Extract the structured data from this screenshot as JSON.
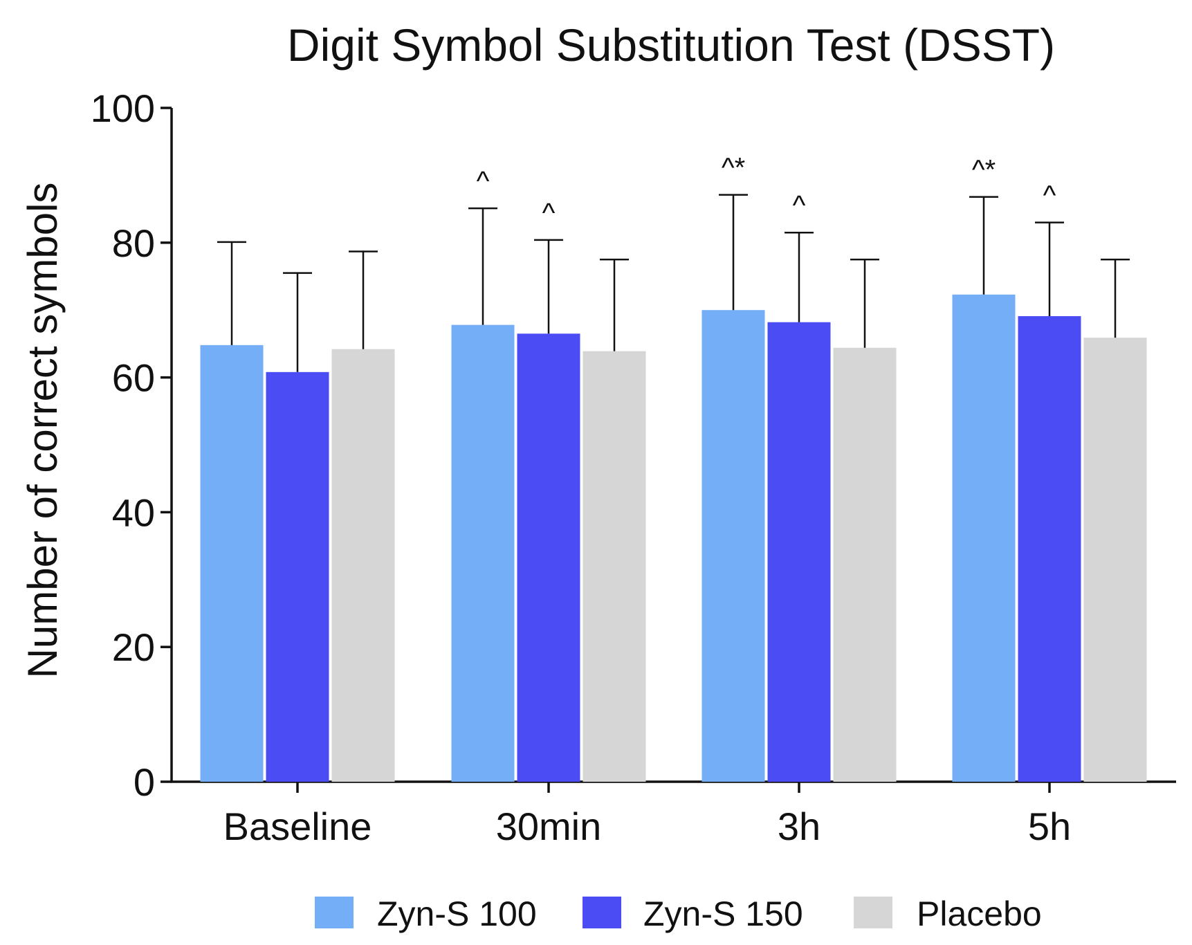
{
  "chart_data": {
    "type": "bar",
    "title": "Digit Symbol Substitution Test (DSST)",
    "xlabel": "",
    "ylabel": "Number of correct symbols",
    "ylim": [
      0,
      100
    ],
    "yticks": [
      0,
      20,
      40,
      60,
      80,
      100
    ],
    "categories": [
      "Baseline",
      "30min",
      "3h",
      "5h"
    ],
    "series": [
      {
        "name": "Zyn-S 100",
        "color": "#74aef7",
        "values": [
          64.8,
          67.8,
          70.0,
          72.3
        ],
        "error_upper": [
          80.1,
          85.1,
          87.1,
          86.8
        ],
        "annotations": [
          "",
          "^",
          "^*",
          "^*"
        ]
      },
      {
        "name": "Zyn-S 150",
        "color": "#4c4cf5",
        "values": [
          60.8,
          66.5,
          68.2,
          69.1
        ],
        "error_upper": [
          75.5,
          80.4,
          81.5,
          83.0
        ],
        "annotations": [
          "",
          "^",
          "^",
          "^"
        ]
      },
      {
        "name": "Placebo",
        "color": "#d6d6d6",
        "values": [
          64.2,
          63.9,
          64.4,
          65.9
        ],
        "error_upper": [
          78.7,
          77.5,
          77.5,
          77.5
        ],
        "annotations": [
          "",
          "",
          "",
          ""
        ]
      }
    ],
    "legend_position": "bottom-center",
    "grid": false
  }
}
